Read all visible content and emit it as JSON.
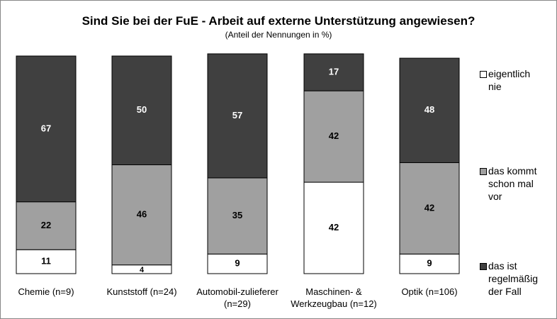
{
  "chart_data": {
    "type": "stacked_bar",
    "title": "Sind Sie bei der FuE - Arbeit auf externe Unterstützung angewiesen?",
    "subtitle": "(Anteil der Nennungen in %)",
    "categories": [
      "Chemie (n=9)",
      "Kunststoff (n=24)",
      "Automobil-zulieferer (n=29)",
      "Maschinen- & Werkzeugbau (n=12)",
      "Optik (n=106)"
    ],
    "ylim": [
      0,
      100
    ],
    "legend": "right",
    "series": [
      {
        "name": "eigentlich nie",
        "color": "#ffffff",
        "values": [
          11,
          4,
          9,
          42,
          9
        ]
      },
      {
        "name": "das kommt schon mal vor",
        "color": "#a0a0a0",
        "values": [
          22,
          46,
          35,
          42,
          42
        ]
      },
      {
        "name": "das ist regelmäßig der Fall",
        "color": "#404040",
        "values": [
          67,
          50,
          57,
          17,
          48
        ]
      }
    ]
  }
}
